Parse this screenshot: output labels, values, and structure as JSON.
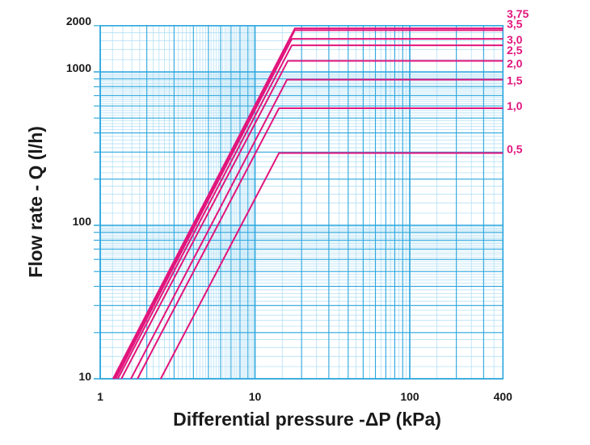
{
  "chart_data": {
    "type": "line",
    "title": "",
    "xlabel": "Differential pressure -ΔP (kPa)",
    "ylabel": "Flow rate - Q (l/h)",
    "x_scale": "log",
    "y_scale": "log",
    "xlim": [
      1,
      400
    ],
    "ylim": [
      10,
      2000
    ],
    "x_ticks": [
      {
        "value": 1,
        "label": "1"
      },
      {
        "value": 10,
        "label": "10"
      },
      {
        "value": 100,
        "label": "100"
      },
      {
        "value": 400,
        "label": "400"
      }
    ],
    "y_ticks": [
      {
        "value": 10,
        "label": "10"
      },
      {
        "value": 100,
        "label": "100"
      },
      {
        "value": 1000,
        "label": "1000"
      },
      {
        "value": 2000,
        "label": "2000"
      }
    ],
    "grid": true,
    "legend": "curve labels at right end",
    "colors": {
      "series": "#e2157c",
      "grid_major": "#2aa6de",
      "grid_minor": "#a9dcf4",
      "label": "#e2157c"
    },
    "series": [
      {
        "name": "3,75",
        "points": [
          [
            1.21,
            10
          ],
          [
            18.1,
            1920
          ],
          [
            400,
            1920
          ]
        ]
      },
      {
        "name": "3,5",
        "points": [
          [
            1.23,
            10
          ],
          [
            18.1,
            1870
          ],
          [
            400,
            1870
          ]
        ]
      },
      {
        "name": "3,0",
        "points": [
          [
            1.26,
            10
          ],
          [
            17.3,
            1640
          ],
          [
            400,
            1640
          ]
        ]
      },
      {
        "name": "2,5",
        "points": [
          [
            1.3,
            10
          ],
          [
            17.3,
            1490
          ],
          [
            400,
            1490
          ]
        ]
      },
      {
        "name": "2,0",
        "points": [
          [
            1.37,
            10
          ],
          [
            16.3,
            1180
          ],
          [
            400,
            1180
          ]
        ]
      },
      {
        "name": "1,5",
        "points": [
          [
            1.58,
            10
          ],
          [
            16.1,
            890
          ],
          [
            400,
            890
          ]
        ]
      },
      {
        "name": "1,0",
        "points": [
          [
            1.74,
            10
          ],
          [
            14.3,
            580
          ],
          [
            400,
            580
          ]
        ]
      },
      {
        "name": "0,5",
        "points": [
          [
            2.46,
            10
          ],
          [
            14.3,
            296
          ],
          [
            400,
            296
          ]
        ]
      }
    ]
  }
}
